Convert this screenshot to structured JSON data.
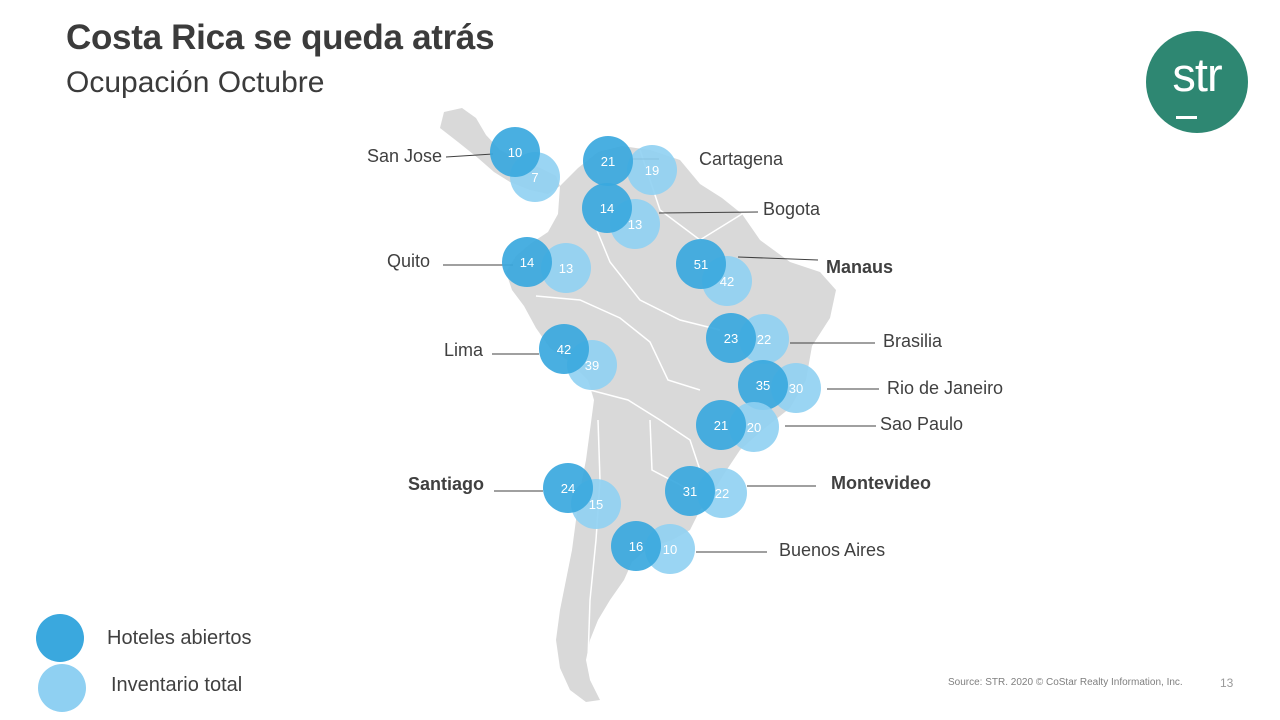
{
  "header": {
    "title": "Costa Rica se queda atrás",
    "subtitle": "Ocupación Octubre"
  },
  "logo": {
    "text": "str"
  },
  "colors": {
    "open": "#3aa8de",
    "inventory": "#8fd0f2",
    "logo_bg": "#2e8772",
    "land": "#d9d9d9"
  },
  "legend": {
    "open_label": "Hoteles abiertos",
    "inventory_label": "Inventario total"
  },
  "cities": [
    {
      "name": "San Jose",
      "open": "10",
      "inventory": "7",
      "bold": false
    },
    {
      "name": "Cartagena",
      "open": "21",
      "inventory": "19",
      "bold": false
    },
    {
      "name": "Bogota",
      "open": "14",
      "inventory": "13",
      "bold": false
    },
    {
      "name": "Quito",
      "open": "14",
      "inventory": "13",
      "bold": false
    },
    {
      "name": "Manaus",
      "open": "51",
      "inventory": "42",
      "bold": true
    },
    {
      "name": "Lima",
      "open": "42",
      "inventory": "39",
      "bold": false
    },
    {
      "name": "Brasilia",
      "open": "23",
      "inventory": "22",
      "bold": false
    },
    {
      "name": "Rio de Janeiro",
      "open": "35",
      "inventory": "30",
      "bold": false
    },
    {
      "name": "Sao Paulo",
      "open": "21",
      "inventory": "20",
      "bold": false
    },
    {
      "name": "Santiago",
      "open": "24",
      "inventory": "15",
      "bold": true
    },
    {
      "name": "Montevideo",
      "open": "31",
      "inventory": "22",
      "bold": true
    },
    {
      "name": "Buenos Aires",
      "open": "16",
      "inventory": "10",
      "bold": false
    }
  ],
  "footer": {
    "source": "Source: STR. 2020 © CoStar Realty Information, Inc.",
    "page": "13"
  }
}
